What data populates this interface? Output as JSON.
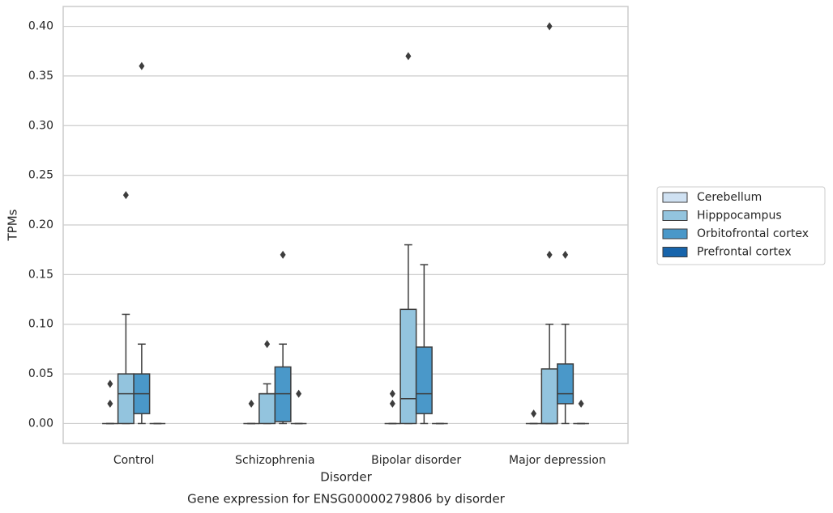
{
  "chart_data": {
    "type": "box",
    "title": "Gene expression for ENSG00000279806 by disorder",
    "x_label": "Disorder",
    "y_label": "TPMs",
    "categories": [
      "Control",
      "Schizophrenia",
      "Bipolar disorder",
      "Major depression"
    ],
    "ylim": [
      -0.02,
      0.42
    ],
    "yticks": [
      {
        "value": 0,
        "label": "0.00"
      },
      0.05,
      {
        "value": 0.1,
        "label": "0.10"
      },
      0.15,
      {
        "value": 0.2,
        "label": "0.20"
      },
      0.25,
      {
        "value": 0.3,
        "label": "0.30"
      },
      0.35,
      {
        "value": 0.4,
        "label": "0.40"
      }
    ],
    "grid": true,
    "legend": "right",
    "series": [
      {
        "name": "Cerebellum",
        "color": "#cfe1f2",
        "boxes": [
          {
            "min": 0,
            "q1": 0,
            "median": 0,
            "q3": 0,
            "max": 0,
            "outliers": [
              0.04,
              0.02
            ]
          },
          {
            "min": 0,
            "q1": 0,
            "median": 0,
            "q3": 0,
            "max": 0,
            "outliers": [
              0.02
            ]
          },
          {
            "min": 0,
            "q1": 0,
            "median": 0,
            "q3": 0,
            "max": 0,
            "outliers": [
              0.03,
              0.02
            ]
          },
          {
            "min": 0,
            "q1": 0,
            "median": 0,
            "q3": 0,
            "max": 0,
            "outliers": [
              0.01
            ]
          }
        ]
      },
      {
        "name": "Hipppocampus",
        "color": "#93c4de",
        "boxes": [
          {
            "min": 0,
            "q1": 0,
            "median": 0.03,
            "q3": 0.05,
            "max": 0.11,
            "outliers": [
              0.23
            ]
          },
          {
            "min": 0,
            "q1": 0,
            "median": 0.03,
            "q3": 0.03,
            "max": 0.04,
            "outliers": [
              0.08
            ]
          },
          {
            "min": 0,
            "q1": 0,
            "median": 0.025,
            "q3": 0.115,
            "max": 0.18,
            "outliers": [
              0.37
            ]
          },
          {
            "min": 0,
            "q1": 0,
            "median": 0,
            "q3": 0.055,
            "max": 0.1,
            "outliers": [
              0.17,
              0.4
            ]
          }
        ]
      },
      {
        "name": "Orbitofrontal cortex",
        "color": "#4a98c9",
        "boxes": [
          {
            "min": 0,
            "q1": 0.01,
            "median": 0.03,
            "q3": 0.05,
            "max": 0.08,
            "outliers": [
              0.36
            ]
          },
          {
            "min": 0,
            "q1": 0.002,
            "median": 0.03,
            "q3": 0.057,
            "max": 0.08,
            "outliers": [
              0.17
            ]
          },
          {
            "min": 0,
            "q1": 0.01,
            "median": 0.03,
            "q3": 0.077,
            "max": 0.16,
            "outliers": []
          },
          {
            "min": 0,
            "q1": 0.02,
            "median": 0.03,
            "q3": 0.06,
            "max": 0.1,
            "outliers": [
              0.17
            ]
          }
        ]
      },
      {
        "name": "Prefrontal cortex",
        "color": "#1764ab",
        "boxes": [
          {
            "min": 0,
            "q1": 0,
            "median": 0,
            "q3": 0,
            "max": 0,
            "outliers": []
          },
          {
            "min": 0,
            "q1": 0,
            "median": 0,
            "q3": 0,
            "max": 0,
            "outliers": [
              0.03
            ]
          },
          {
            "min": 0,
            "q1": 0,
            "median": 0,
            "q3": 0,
            "max": 0,
            "outliers": []
          },
          {
            "min": 0,
            "q1": 0,
            "median": 0,
            "q3": 0,
            "max": 0,
            "outliers": [
              0.02
            ]
          }
        ]
      }
    ]
  }
}
